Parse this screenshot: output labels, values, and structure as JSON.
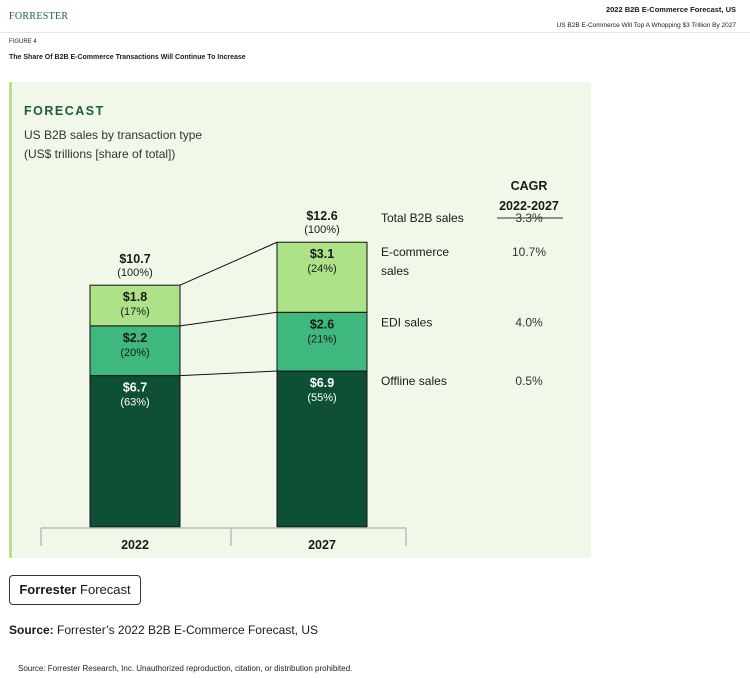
{
  "header": {
    "logo": "FORRESTER",
    "report_title": "2022 B2B E-Commerce Forecast, US",
    "report_subtitle": "US B2B E-Commerce Will Top A Whopping $3 Trillion By 2027"
  },
  "figure": {
    "label": "FIGURE 4",
    "title": "The Share Of B2B E-Commerce Transactions Will Continue To Increase"
  },
  "panel": {
    "heading": "FORECAST",
    "subtitle_line1": "US B2B sales by transaction type",
    "subtitle_line2": "(US$ trillions [share of total])"
  },
  "badge": {
    "bold": "Forrester",
    "regular": " Forecast"
  },
  "source": {
    "label": "Source:",
    "text": " Forrester’s 2022 B2B E-Commerce Forecast, US",
    "footer": "Source: Forrester Research, Inc. Unauthorized reproduction, citation, or distribution prohibited."
  },
  "colors": {
    "offline": "#0e5036",
    "edi": "#3fb87d",
    "ecommerce": "#aee289",
    "panel": "#f1f8ea",
    "accent": "#1f5c3a"
  },
  "chart_data": {
    "type": "bar",
    "stacked": true,
    "categories": [
      "2022",
      "2027"
    ],
    "totals": [
      {
        "value": "$10.7",
        "share": "(100%)"
      },
      {
        "value": "$12.6",
        "share": "(100%)"
      }
    ],
    "series": [
      {
        "name": "Offline sales",
        "values": [
          6.7,
          6.9
        ],
        "value_labels": [
          "$6.7",
          "$6.9"
        ],
        "shares": [
          "(63%)",
          "(55%)"
        ],
        "cagr": "0.5%",
        "color": "#0e5036",
        "text_color": "#ffffff"
      },
      {
        "name": "EDI sales",
        "values": [
          2.2,
          2.6
        ],
        "value_labels": [
          "$2.2",
          "$2.6"
        ],
        "shares": [
          "(20%)",
          "(21%)"
        ],
        "cagr": "4.0%",
        "color": "#3fb87d",
        "text_color": "#1a1a1a"
      },
      {
        "name": "E-commerce sales",
        "name_lines": [
          "E-commerce",
          "sales"
        ],
        "values": [
          1.8,
          3.1
        ],
        "value_labels": [
          "$1.8",
          "$3.1"
        ],
        "shares": [
          "(17%)",
          "(24%)"
        ],
        "cagr": "10.7%",
        "color": "#aee289",
        "text_color": "#1a1a1a"
      }
    ],
    "total_row": {
      "name": "Total B2B sales",
      "cagr": "3.3%"
    },
    "cagr_header": [
      "CAGR",
      "2022-2027"
    ]
  }
}
